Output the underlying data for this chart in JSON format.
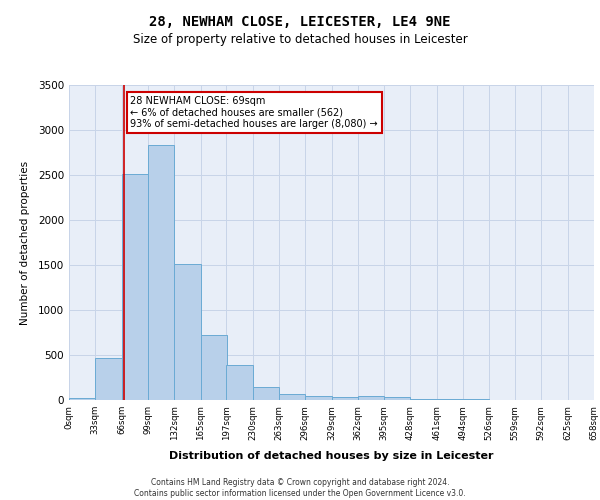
{
  "title1": "28, NEWHAM CLOSE, LEICESTER, LE4 9NE",
  "title2": "Size of property relative to detached houses in Leicester",
  "xlabel": "Distribution of detached houses by size in Leicester",
  "ylabel": "Number of detached properties",
  "bar_left_edges": [
    0,
    33,
    66,
    99,
    132,
    165,
    197,
    230,
    263,
    296,
    329,
    362,
    395,
    428,
    461,
    494,
    526,
    559,
    592,
    625
  ],
  "bar_heights": [
    20,
    470,
    2510,
    2830,
    1510,
    720,
    390,
    150,
    70,
    50,
    35,
    50,
    35,
    15,
    15,
    10,
    5,
    5,
    5,
    5
  ],
  "bin_width": 33,
  "bar_color": "#b8d0ea",
  "bar_edge_color": "#6aaad4",
  "grid_color": "#c8d4e8",
  "background_color": "#e8eef8",
  "property_line_x": 69,
  "annotation_text": "28 NEWHAM CLOSE: 69sqm\n← 6% of detached houses are smaller (562)\n93% of semi-detached houses are larger (8,080) →",
  "annotation_box_color": "#ffffff",
  "annotation_box_edge_color": "#cc0000",
  "property_line_color": "#cc0000",
  "ylim": [
    0,
    3500
  ],
  "yticks": [
    0,
    500,
    1000,
    1500,
    2000,
    2500,
    3000,
    3500
  ],
  "xtick_labels": [
    "0sqm",
    "33sqm",
    "66sqm",
    "99sqm",
    "132sqm",
    "165sqm",
    "197sqm",
    "230sqm",
    "263sqm",
    "296sqm",
    "329sqm",
    "362sqm",
    "395sqm",
    "428sqm",
    "461sqm",
    "494sqm",
    "526sqm",
    "559sqm",
    "592sqm",
    "625sqm",
    "658sqm"
  ],
  "xtick_positions": [
    0,
    33,
    66,
    99,
    132,
    165,
    197,
    230,
    263,
    296,
    329,
    362,
    395,
    428,
    461,
    494,
    526,
    559,
    592,
    625,
    658
  ],
  "footer_line1": "Contains HM Land Registry data © Crown copyright and database right 2024.",
  "footer_line2": "Contains public sector information licensed under the Open Government Licence v3.0."
}
